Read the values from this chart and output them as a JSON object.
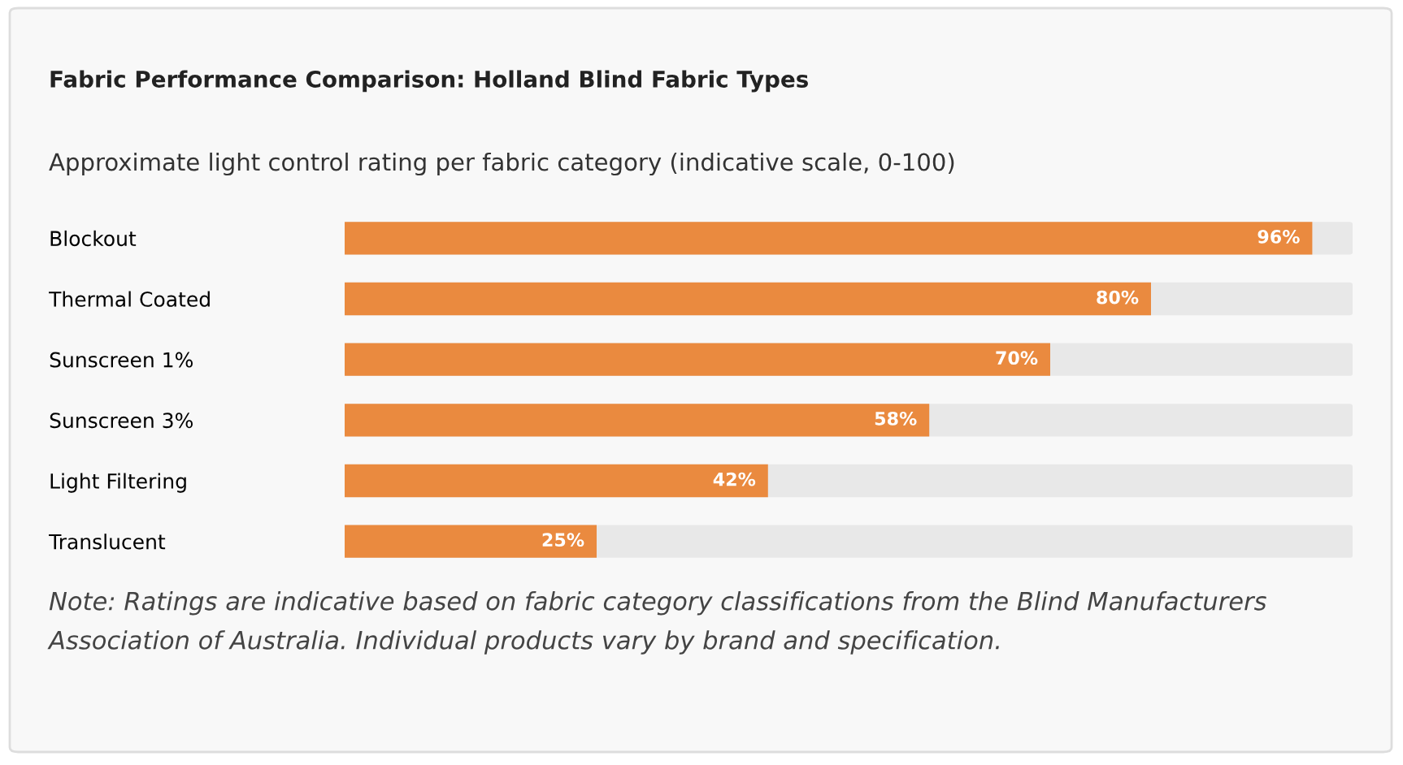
{
  "chart_data": {
    "type": "bar",
    "orientation": "horizontal",
    "title": "Fabric Performance Comparison: Holland Blind Fabric Types",
    "subtitle": "Approximate light control rating per fabric category (indicative scale, 0-100)",
    "categories": [
      "Blockout",
      "Thermal Coated",
      "Sunscreen 1%",
      "Sunscreen 3%",
      "Light Filtering",
      "Translucent"
    ],
    "values": [
      96,
      80,
      70,
      58,
      42,
      25
    ],
    "value_labels": [
      "96%",
      "80%",
      "70%",
      "58%",
      "42%",
      "25%"
    ],
    "color": "#ea8a3f",
    "xlim": [
      0,
      100
    ],
    "tick_labels": "y",
    "grid": false,
    "legend": false,
    "annotations": [
      "Note: Ratings are indicative based on fabric category classifications from the Blind Manufacturers Association of Australia. Individual products vary by brand and specification."
    ]
  }
}
